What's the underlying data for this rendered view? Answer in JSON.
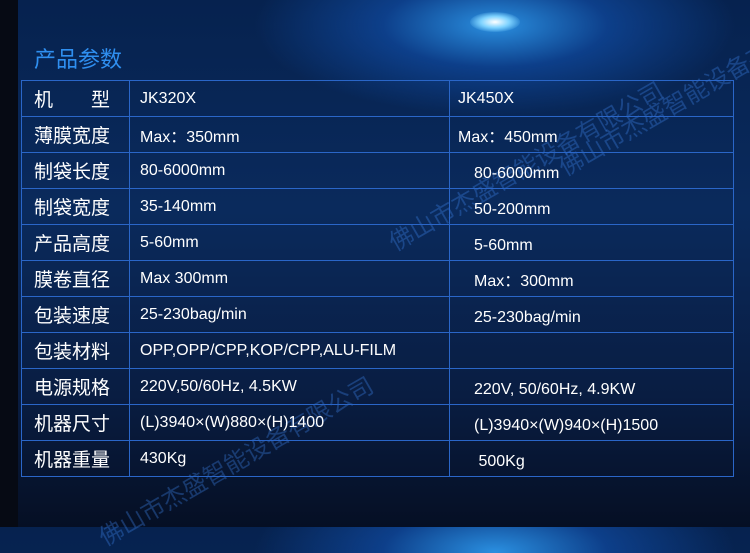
{
  "title": "产品参数",
  "watermark": "佛山市杰盛智能设备有限公司",
  "colors": {
    "title": "#2f8ff0",
    "border": "#2a66c8",
    "text": "#ffffff"
  },
  "rows": [
    {
      "label": "机　　型",
      "a": "JK320X",
      "b": "JK450X"
    },
    {
      "label": "薄膜宽度",
      "a": "Max：350mm",
      "b": "Max：450mm"
    },
    {
      "label": "制袋长度",
      "a": "80-6000mm",
      "b": "　80-6000mm"
    },
    {
      "label": "制袋宽度",
      "a": "35-140mm",
      "b": "　50-200mm"
    },
    {
      "label": "产品高度",
      "a": "5-60mm",
      "b": "　5-60mm"
    },
    {
      "label": "膜卷直径",
      "a": "Max 300mm",
      "b": "　Max：300mm"
    },
    {
      "label": "包装速度",
      "a": "25-230bag/min",
      "b": "　25-230bag/min"
    },
    {
      "label": "包装材料",
      "a": "OPP,OPP/CPP,KOP/CPP,ALU-FILM",
      "b": ""
    },
    {
      "label": "电源规格",
      "a": "220V,50/60Hz, 4.5KW",
      "b": "　220V, 50/60Hz, 4.9KW"
    },
    {
      "label": "机器尺寸",
      "a": "(L)3940×(W)880×(H)1400",
      "b": "　(L)3940×(W)940×(H)1500"
    },
    {
      "label": "机器重量",
      "a": " 430Kg",
      "b": "　 500Kg"
    }
  ]
}
